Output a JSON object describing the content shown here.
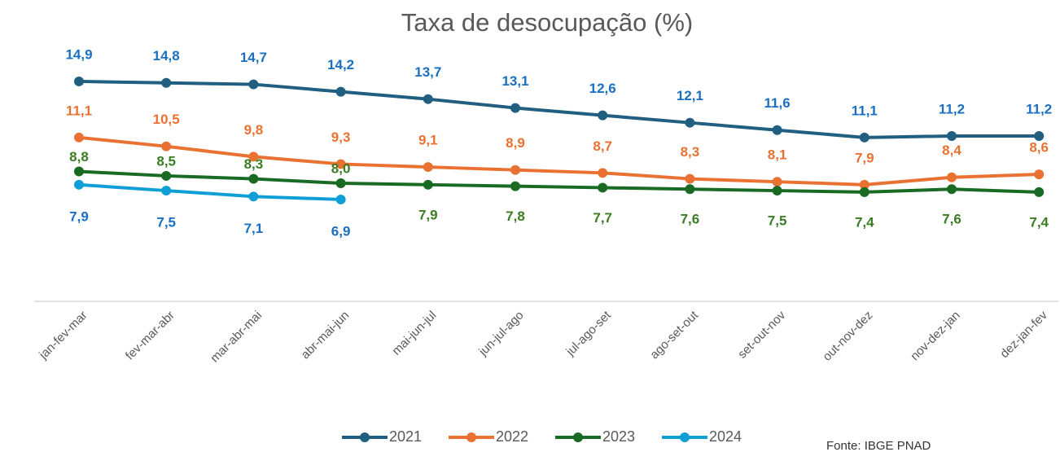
{
  "chart_data": {
    "type": "line",
    "title": "Taxa de desocupação (%)",
    "categories": [
      "jan-fev-mar",
      "fev-mar-abr",
      "mar-abr-mai",
      "abr-mai-jun",
      "mai-jun-jul",
      "jun-jul-ago",
      "jul-ago-set",
      "ago-set-out",
      "set-out-nov",
      "out-nov-dez",
      "nov-dez-jan",
      "dez-jan-fev"
    ],
    "series": [
      {
        "name": "2021",
        "color": "#215f80",
        "values": [
          14.9,
          14.8,
          14.7,
          14.2,
          13.7,
          13.1,
          12.6,
          12.1,
          11.6,
          11.1,
          11.2,
          11.2
        ],
        "value_labels": [
          "14,9",
          "14,8",
          "14,7",
          "14,2",
          "13,7",
          "13,1",
          "12,6",
          "12,1",
          "11,6",
          "11,1",
          "11,2",
          "11,2"
        ]
      },
      {
        "name": "2022",
        "color": "#e97132",
        "values": [
          11.1,
          10.5,
          9.8,
          9.3,
          9.1,
          8.9,
          8.7,
          8.3,
          8.1,
          7.9,
          8.4,
          8.6
        ],
        "value_labels": [
          "11,1",
          "10,5",
          "9,8",
          "9,3",
          "9,1",
          "8,9",
          "8,7",
          "8,3",
          "8,1",
          "7,9",
          "8,4",
          "8,6"
        ]
      },
      {
        "name": "2023",
        "color": "#196b24",
        "values": [
          8.8,
          8.5,
          8.3,
          8.0,
          7.9,
          7.8,
          7.7,
          7.6,
          7.5,
          7.4,
          7.6,
          7.4
        ],
        "value_labels": [
          "8,8",
          "8,5",
          "8,3",
          "8,0",
          "7,9",
          "7,8",
          "7,7",
          "7,6",
          "7,5",
          "7,4",
          "7,6",
          "7,4"
        ]
      },
      {
        "name": "2024",
        "color": "#0f9ed5",
        "values": [
          7.9,
          7.5,
          7.1,
          6.9,
          null,
          null,
          null,
          null,
          null,
          null,
          null,
          null
        ],
        "value_labels": [
          "7,9",
          "7,5",
          "7,1",
          "6,9",
          null,
          null,
          null,
          null,
          null,
          null,
          null,
          null
        ]
      }
    ],
    "ylim": [
      0,
      16
    ],
    "grid": false,
    "legend": "bottom",
    "source": "Fonte: IBGE PNAD"
  }
}
